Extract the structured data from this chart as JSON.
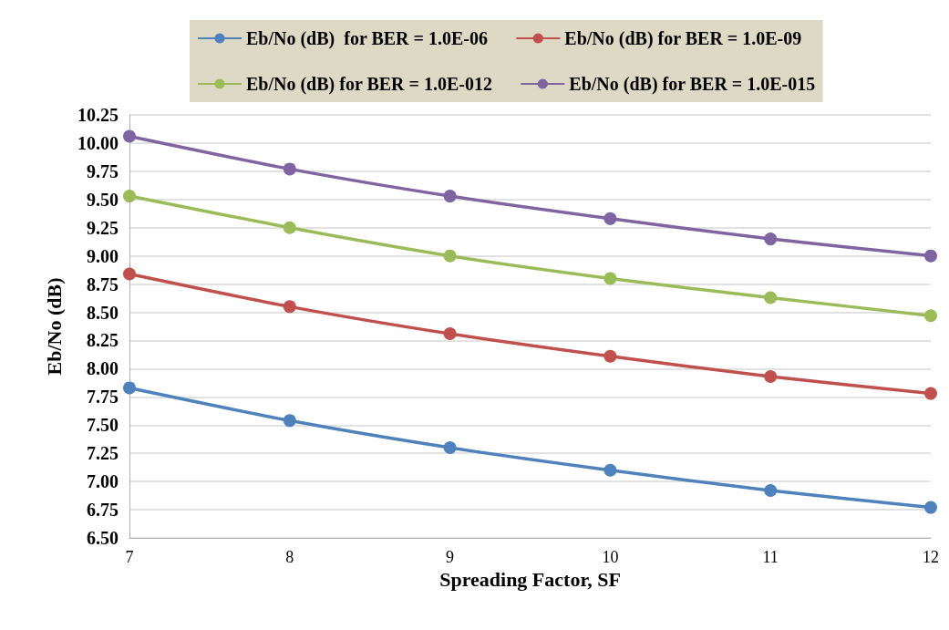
{
  "chart_data": {
    "type": "line",
    "xlabel": "Spreading Factor, SF",
    "ylabel": "Eb/No (dB)",
    "x": [
      7,
      8,
      9,
      10,
      11,
      12
    ],
    "xlim": [
      7,
      12
    ],
    "xticks": [
      7,
      8,
      9,
      10,
      11,
      12
    ],
    "ylim": [
      6.5,
      10.25
    ],
    "yticks": [
      {
        "value": 6.5,
        "label": "6.50"
      },
      {
        "value": 6.75,
        "label": "6.75"
      },
      {
        "value": 7,
        "label": "7.00"
      },
      {
        "value": 7.25,
        "label": "7.25"
      },
      {
        "value": 7.5,
        "label": "7.50"
      },
      {
        "value": 7.75,
        "label": "7.75"
      },
      {
        "value": 8,
        "label": "8.00"
      },
      {
        "value": 8.25,
        "label": "8.25"
      },
      {
        "value": 8.5,
        "label": "8.50"
      },
      {
        "value": 8.75,
        "label": "8.75"
      },
      {
        "value": 9,
        "label": "9.00"
      },
      {
        "value": 9.25,
        "label": "9.25"
      },
      {
        "value": 9.5,
        "label": "9.50"
      },
      {
        "value": 9.75,
        "label": "9.75"
      },
      {
        "value": 10,
        "label": "10.00"
      },
      {
        "value": 10.25,
        "label": "10.25"
      }
    ],
    "grid": "y",
    "legend": "top",
    "marker": "circle",
    "line_style": "solid",
    "series": [
      {
        "name": "Eb/No (dB)  for BER = 1.0E-06",
        "color": "#4f81bd",
        "values": [
          7.83,
          7.54,
          7.3,
          7.1,
          6.92,
          6.77
        ]
      },
      {
        "name": "Eb/No (dB) for BER = 1.0E-09",
        "color": "#c0504d",
        "values": [
          8.84,
          8.55,
          8.31,
          8.11,
          7.93,
          7.78
        ]
      },
      {
        "name": "Eb/No (dB) for BER = 1.0E-012",
        "color": "#9bbb59",
        "values": [
          9.53,
          9.25,
          9,
          8.8,
          8.63,
          8.47
        ]
      },
      {
        "name": "Eb/No (dB) for BER = 1.0E-015",
        "color": "#8064a2",
        "values": [
          10.06,
          9.77,
          9.53,
          9.33,
          9.15,
          9
        ]
      }
    ]
  }
}
